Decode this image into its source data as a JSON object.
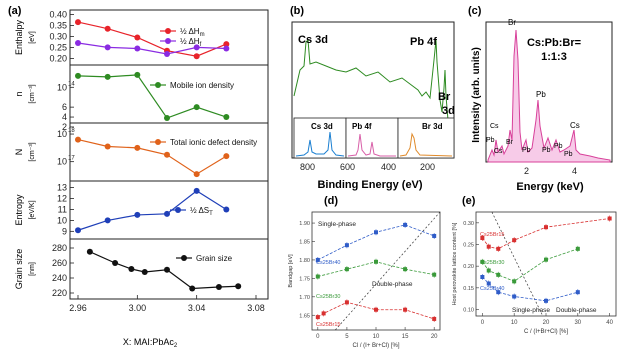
{
  "panels": {
    "a": {
      "label": "(a)",
      "xlabel": "X: MAI:PbAc",
      "xlabel_sub": "2",
      "x_ticks": [
        "2.96",
        "3.00",
        "3.04",
        "3.08"
      ],
      "xlim": [
        2.96,
        3.08
      ],
      "subplots": [
        {
          "key": "enthalpy",
          "ylabel": "Enthalpy",
          "yunit": "[eV]",
          "ylim": [
            0.17,
            0.42
          ],
          "y_ticks": [
            "0.40",
            "0.35",
            "0.30",
            "0.25",
            "0.20"
          ],
          "y_tick_values": [
            0.4,
            0.35,
            0.3,
            0.25,
            0.2
          ],
          "series": [
            {
              "name": "½ ΔH",
              "sub": "m",
              "color": "#e8232a",
              "x": [
                2.96,
                2.98,
                3.0,
                3.02,
                3.04,
                3.06
              ],
              "y": [
                0.365,
                0.335,
                0.295,
                0.235,
                0.21,
                0.265
              ]
            },
            {
              "name": "½ ΔH",
              "sub": "f",
              "color": "#8a2be2",
              "x": [
                2.96,
                2.98,
                3.0,
                3.02,
                3.04,
                3.06
              ],
              "y": [
                0.27,
                0.25,
                0.245,
                0.22,
                0.25,
                0.245
              ]
            }
          ]
        },
        {
          "key": "n",
          "ylabel": "n",
          "ylabel_sub": "330K",
          "yunit": "[cm⁻³]",
          "ylim": [
            2.8,
            14.5
          ],
          "y_ticks": [
            "10",
            "6",
            "4",
            "2"
          ],
          "y_tick_values": [
            10,
            6,
            4,
            2
          ],
          "y_tick_sup": "14",
          "series": [
            {
              "name": "Mobile ion density",
              "color": "#2e8b22",
              "x": [
                2.96,
                2.98,
                3.0,
                3.02,
                3.04,
                3.06
              ],
              "y": [
                12.3,
                12.1,
                12.5,
                3.8,
                6.0,
                4.0
              ]
            }
          ]
        },
        {
          "key": "N",
          "ylabel": "N",
          "yunit": "[cm⁻³]",
          "ylim": [
            16.3,
            18.4
          ],
          "y_ticks": [
            "10",
            "10"
          ],
          "y_tick_values": [
            18,
            17
          ],
          "y_tick_sups": [
            "18",
            "17"
          ],
          "series": [
            {
              "name": "Total ionic defect density",
              "color": "#e0621a",
              "x": [
                2.96,
                2.98,
                3.0,
                3.02,
                3.04,
                3.06
              ],
              "y": [
                17.8,
                17.55,
                17.5,
                17.25,
                16.55,
                17.2
              ]
            }
          ]
        },
        {
          "key": "entropy",
          "ylabel": "Entropy",
          "yunit": "[eV/K]",
          "ylim": [
            8.3,
            13.6
          ],
          "y_ticks": [
            "13",
            "12",
            "11",
            "10",
            "9"
          ],
          "y_tick_values": [
            13,
            12,
            11,
            10,
            9
          ],
          "series": [
            {
              "name": "½ ΔS",
              "sub": "T",
              "color": "#1f3fb8",
              "x": [
                2.96,
                2.98,
                3.0,
                3.02,
                3.04,
                3.06
              ],
              "y": [
                9.1,
                10.0,
                10.5,
                10.6,
                12.7,
                11.0
              ]
            }
          ]
        },
        {
          "key": "grain",
          "ylabel": "Grain size",
          "yunit": "[nm]",
          "ylim": [
            212,
            292
          ],
          "y_ticks": [
            "280",
            "260",
            "240",
            "220"
          ],
          "y_tick_values": [
            280,
            260,
            240,
            220
          ],
          "series": [
            {
              "name": "Grain size",
              "color": "#111111",
              "x": [
                2.968,
                2.985,
                2.996,
                3.005,
                3.02,
                3.037,
                3.055,
                3.068
              ],
              "y": [
                275,
                260,
                252,
                248,
                251,
                226,
                228,
                229
              ]
            }
          ]
        }
      ]
    },
    "b": {
      "label": "(b)",
      "xlabel": "Binding Energy (eV)",
      "x_ticks": [
        "800",
        "600",
        "400",
        "200"
      ],
      "peaks": {
        "cs": "Cs 3d",
        "pb": "Pb 4f",
        "br": "Br",
        "br2": "3d"
      },
      "insets": [
        {
          "label": "Cs 3d",
          "color": "#1a7fd1"
        },
        {
          "label": "Pb 4f",
          "color": "#d85fa8"
        },
        {
          "label": "Br 3d",
          "color": "#e08a2a"
        }
      ]
    },
    "c": {
      "label": "(c)",
      "ylabel": "Intensity (arb. units)",
      "xlabel": "Energy (keV)",
      "x_ticks": [
        "2",
        "4"
      ],
      "title": "Cs:Pb:Br=",
      "title2": "1:1:3",
      "peak_labels": [
        "Br",
        "Cs",
        "Pb",
        "Cs",
        "Br",
        "Pb",
        "Pb",
        "Pb",
        "Pb",
        "Pb",
        "Cs"
      ]
    },
    "d": {
      "label": "(d)",
      "ylabel": "Bandgap [eV]",
      "xlabel": "Cl / (I+ Br+Cl) [%]",
      "x_ticks": [
        "0",
        "5",
        "10",
        "15",
        "20"
      ],
      "y_ticks": [
        "1.90",
        "1.85",
        "1.80",
        "1.75",
        "1.70",
        "1.65"
      ],
      "y_tick_values": [
        1.9,
        1.85,
        1.8,
        1.75,
        1.7,
        1.65
      ],
      "xlim": [
        -1,
        21
      ],
      "ylim": [
        1.61,
        1.93
      ],
      "annotations": [
        "Single-phase",
        "Double-phase"
      ],
      "series": [
        {
          "name": "Cs25Br40",
          "color": "#2f5cc8",
          "x": [
            0,
            5,
            10,
            15,
            20
          ],
          "y": [
            1.8,
            1.84,
            1.875,
            1.895,
            1.865
          ]
        },
        {
          "name": "Cs25Br30",
          "color": "#3a9a3a",
          "x": [
            0,
            5,
            10,
            15,
            20
          ],
          "y": [
            1.755,
            1.775,
            1.795,
            1.775,
            1.76
          ]
        },
        {
          "name": "Cs25Br15",
          "color": "#d83030",
          "x": [
            0,
            1,
            5,
            10,
            15,
            20
          ],
          "y": [
            1.645,
            1.655,
            1.685,
            1.665,
            1.665,
            1.64
          ]
        }
      ]
    },
    "e": {
      "label": "(e)",
      "ylabel": "Host perovskite lattice content [%]",
      "xlabel": "C / (I+Br+Cl) [%]",
      "x_ticks": [
        "0",
        "10",
        "20",
        "30",
        "40"
      ],
      "y_ticks": [
        "0.30",
        "0.25",
        "0.20",
        "0.15",
        "0.10"
      ],
      "y_tick_values": [
        0.3,
        0.25,
        0.2,
        0.15,
        0.1
      ],
      "xlim": [
        -2,
        42
      ],
      "ylim": [
        0.085,
        0.325
      ],
      "annotations": [
        "Single-phase",
        "Double-phase"
      ],
      "series": [
        {
          "name": "Cs25Br15",
          "color": "#d83030",
          "x": [
            0,
            2,
            5,
            10,
            20,
            40
          ],
          "y": [
            0.265,
            0.245,
            0.24,
            0.26,
            0.29,
            0.31
          ]
        },
        {
          "name": "Cs25Br30",
          "color": "#3a9a3a",
          "x": [
            0,
            2,
            5,
            10,
            20,
            30
          ],
          "y": [
            0.21,
            0.19,
            0.18,
            0.165,
            0.215,
            0.24
          ]
        },
        {
          "name": "Cs25Br40",
          "color": "#2f5cc8",
          "x": [
            0,
            2,
            5,
            10,
            20,
            30
          ],
          "y": [
            0.175,
            0.16,
            0.14,
            0.13,
            0.12,
            0.14
          ]
        }
      ]
    }
  }
}
